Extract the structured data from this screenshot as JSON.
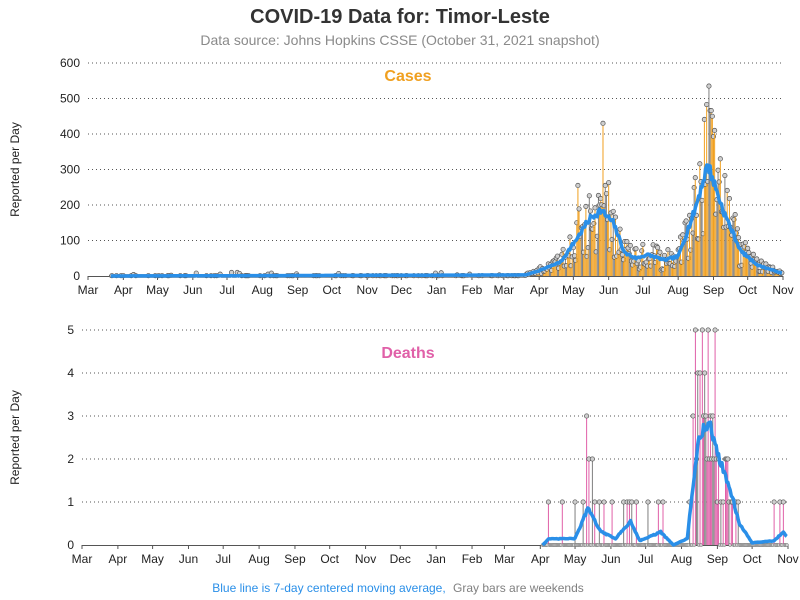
{
  "title": "COVID-19 Data for: Timor-Leste",
  "subtitle": "Data source: Johns Hopkins CSSE (October 31, 2021 snapshot)",
  "footnote": {
    "part1": "Blue line is 7-day centered moving average,",
    "part2": "Gray bars are weekends",
    "part1_color": "#2a8fe8",
    "part2_color": "#808080"
  },
  "colors": {
    "cases": "#f0a020",
    "deaths": "#e060a8",
    "weekend": "#808080",
    "average": "#2a8fe8",
    "gridline": "#555555"
  },
  "chart_data": [
    {
      "type": "bar",
      "panel_title": "Cases",
      "ylabel": "Reported per Day",
      "ylim": [
        0,
        600
      ],
      "yticks": [
        0,
        100,
        200,
        300,
        400,
        500,
        600
      ],
      "xlim": [
        "2020-03-01",
        "2021-11-01"
      ],
      "xtick_labels": [
        "Mar",
        "Apr",
        "May",
        "Jun",
        "Jul",
        "Aug",
        "Sep",
        "Oct",
        "Nov",
        "Dec",
        "Jan",
        "Feb",
        "Mar",
        "Apr",
        "May",
        "Jun",
        "Jul",
        "Aug",
        "Sep",
        "Oct",
        "Nov"
      ],
      "grid": "horizontal dotted",
      "series": [
        {
          "name": "Daily reported",
          "style": "bars with circle markers (weekends gray)"
        },
        {
          "name": "7-day centered moving average",
          "style": "line"
        }
      ],
      "daily_values_start": "2020-03-21",
      "daily_values_end": "2021-10-31",
      "notable_points": [
        {
          "date": "2021-05-05",
          "value": 255
        },
        {
          "date": "2021-05-27",
          "value": 430
        },
        {
          "date": "2021-08-28",
          "value": 535
        }
      ],
      "moving_average_keypoints": [
        {
          "date": "2020-03-21",
          "value": 0
        },
        {
          "date": "2021-03-20",
          "value": 3
        },
        {
          "date": "2021-04-01",
          "value": 15
        },
        {
          "date": "2021-04-20",
          "value": 40
        },
        {
          "date": "2021-05-05",
          "value": 110
        },
        {
          "date": "2021-05-15",
          "value": 160
        },
        {
          "date": "2021-05-25",
          "value": 185
        },
        {
          "date": "2021-06-05",
          "value": 150
        },
        {
          "date": "2021-06-15",
          "value": 65
        },
        {
          "date": "2021-06-25",
          "value": 50
        },
        {
          "date": "2021-07-05",
          "value": 60
        },
        {
          "date": "2021-07-20",
          "value": 45
        },
        {
          "date": "2021-08-01",
          "value": 55
        },
        {
          "date": "2021-08-15",
          "value": 180
        },
        {
          "date": "2021-08-27",
          "value": 315
        },
        {
          "date": "2021-09-10",
          "value": 180
        },
        {
          "date": "2021-09-25",
          "value": 70
        },
        {
          "date": "2021-10-10",
          "value": 30
        },
        {
          "date": "2021-10-31",
          "value": 8
        }
      ]
    },
    {
      "type": "bar",
      "panel_title": "Deaths",
      "ylabel": "Reported per Day",
      "ylim": [
        0,
        5
      ],
      "yticks": [
        0,
        1,
        2,
        3,
        4,
        5
      ],
      "xlim": [
        "2020-03-01",
        "2021-11-01"
      ],
      "xtick_labels": [
        "Mar",
        "Apr",
        "May",
        "Jun",
        "Jul",
        "Aug",
        "Sep",
        "Oct",
        "Nov",
        "Dec",
        "Jan",
        "Feb",
        "Mar",
        "Apr",
        "May",
        "Jun",
        "Jul",
        "Aug",
        "Sep",
        "Oct",
        "Nov"
      ],
      "grid": "horizontal dotted",
      "series": [
        {
          "name": "Daily reported",
          "style": "bars with circle markers (weekends gray)"
        },
        {
          "name": "7-day centered moving average",
          "style": "line"
        }
      ],
      "daily_values_start": "2021-04-03",
      "daily_values_end": "2021-10-31",
      "nonzero_days": [
        {
          "date": "2021-04-08",
          "value": 1
        },
        {
          "date": "2021-04-20",
          "value": 1
        },
        {
          "date": "2021-05-01",
          "value": 1
        },
        {
          "date": "2021-05-08",
          "value": 1
        },
        {
          "date": "2021-05-11",
          "value": 3
        },
        {
          "date": "2021-05-13",
          "value": 2
        },
        {
          "date": "2021-05-16",
          "value": 2
        },
        {
          "date": "2021-05-18",
          "value": 1
        },
        {
          "date": "2021-05-22",
          "value": 1
        },
        {
          "date": "2021-05-26",
          "value": 1
        },
        {
          "date": "2021-06-02",
          "value": 1
        },
        {
          "date": "2021-06-12",
          "value": 1
        },
        {
          "date": "2021-06-15",
          "value": 1
        },
        {
          "date": "2021-06-17",
          "value": 1
        },
        {
          "date": "2021-06-19",
          "value": 1
        },
        {
          "date": "2021-06-23",
          "value": 1
        },
        {
          "date": "2021-07-03",
          "value": 1
        },
        {
          "date": "2021-07-12",
          "value": 1
        },
        {
          "date": "2021-07-16",
          "value": 1
        },
        {
          "date": "2021-08-08",
          "value": 1
        },
        {
          "date": "2021-08-11",
          "value": 3
        },
        {
          "date": "2021-08-13",
          "value": 5
        },
        {
          "date": "2021-08-14",
          "value": 2
        },
        {
          "date": "2021-08-15",
          "value": 4
        },
        {
          "date": "2021-08-17",
          "value": 4
        },
        {
          "date": "2021-08-19",
          "value": 5
        },
        {
          "date": "2021-08-20",
          "value": 3
        },
        {
          "date": "2021-08-21",
          "value": 4
        },
        {
          "date": "2021-08-22",
          "value": 3
        },
        {
          "date": "2021-08-23",
          "value": 2
        },
        {
          "date": "2021-08-24",
          "value": 5
        },
        {
          "date": "2021-08-25",
          "value": 2
        },
        {
          "date": "2021-08-26",
          "value": 3
        },
        {
          "date": "2021-08-27",
          "value": 2
        },
        {
          "date": "2021-08-28",
          "value": 3
        },
        {
          "date": "2021-08-29",
          "value": 2
        },
        {
          "date": "2021-08-30",
          "value": 5
        },
        {
          "date": "2021-08-31",
          "value": 2
        },
        {
          "date": "2021-09-01",
          "value": 1
        },
        {
          "date": "2021-09-02",
          "value": 2
        },
        {
          "date": "2021-09-04",
          "value": 1
        },
        {
          "date": "2021-09-06",
          "value": 1
        },
        {
          "date": "2021-09-08",
          "value": 2
        },
        {
          "date": "2021-09-09",
          "value": 2
        },
        {
          "date": "2021-09-10",
          "value": 2
        },
        {
          "date": "2021-09-11",
          "value": 1
        },
        {
          "date": "2021-09-13",
          "value": 1
        },
        {
          "date": "2021-09-14",
          "value": 1
        },
        {
          "date": "2021-09-17",
          "value": 1
        },
        {
          "date": "2021-09-19",
          "value": 1
        },
        {
          "date": "2021-10-20",
          "value": 1
        },
        {
          "date": "2021-10-25",
          "value": 1
        },
        {
          "date": "2021-10-28",
          "value": 1
        }
      ],
      "moving_average_keypoints": [
        {
          "date": "2021-04-03",
          "value": 0
        },
        {
          "date": "2021-04-08",
          "value": 0.14
        },
        {
          "date": "2021-05-01",
          "value": 0.15
        },
        {
          "date": "2021-05-12",
          "value": 0.85
        },
        {
          "date": "2021-05-17",
          "value": 0.6
        },
        {
          "date": "2021-05-24",
          "value": 0.3
        },
        {
          "date": "2021-06-05",
          "value": 0.15
        },
        {
          "date": "2021-06-18",
          "value": 0.55
        },
        {
          "date": "2021-06-26",
          "value": 0.1
        },
        {
          "date": "2021-07-14",
          "value": 0.3
        },
        {
          "date": "2021-07-25",
          "value": 0.0
        },
        {
          "date": "2021-08-06",
          "value": 0.15
        },
        {
          "date": "2021-08-16",
          "value": 2.6
        },
        {
          "date": "2021-08-25",
          "value": 2.8
        },
        {
          "date": "2021-09-04",
          "value": 1.9
        },
        {
          "date": "2021-09-12",
          "value": 1.3
        },
        {
          "date": "2021-09-20",
          "value": 0.5
        },
        {
          "date": "2021-10-01",
          "value": 0.05
        },
        {
          "date": "2021-10-20",
          "value": 0.1
        },
        {
          "date": "2021-10-28",
          "value": 0.3
        },
        {
          "date": "2021-10-31",
          "value": 0.2
        }
      ]
    }
  ]
}
